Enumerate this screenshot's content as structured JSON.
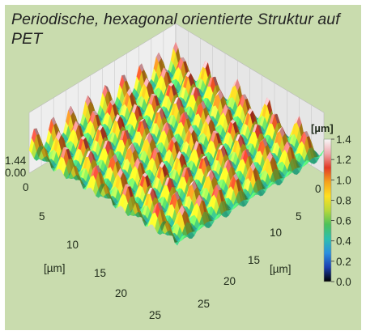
{
  "chart_data": {
    "type": "heatmap",
    "title": "Periodische, hexagonal orientierte Struktur auf PET",
    "plot_style": "3D surface",
    "x_axis": {
      "label": "[µm]",
      "ticks": [
        "0",
        "5",
        "10",
        "15",
        "20",
        "25"
      ],
      "range": [
        0,
        25
      ]
    },
    "y_axis": {
      "label": "[µm]",
      "ticks": [
        "0",
        "5",
        "10",
        "15",
        "20",
        "25"
      ],
      "range": [
        0,
        25
      ]
    },
    "z_axis": {
      "ticks": [
        "1.44",
        "0.00"
      ],
      "range": [
        0,
        1.44
      ]
    },
    "colorbar": {
      "title": "[µm]",
      "ticks": [
        "1.4",
        "1.2",
        "1.0",
        "0.8",
        "0.6",
        "0.4",
        "0.2",
        "0.0"
      ],
      "range": [
        0,
        1.4
      ],
      "colormap": [
        "#000000",
        "#1a3fb0",
        "#2a8fe0",
        "#2bbfb0",
        "#4cc25a",
        "#b8d83a",
        "#ffe020",
        "#f5a21c",
        "#e23a26",
        "#f0aab0",
        "#f7f7f7"
      ]
    },
    "structure": "periodic hexagonal array of peaks",
    "peak_height": 1.44,
    "base_height": 0.0
  }
}
